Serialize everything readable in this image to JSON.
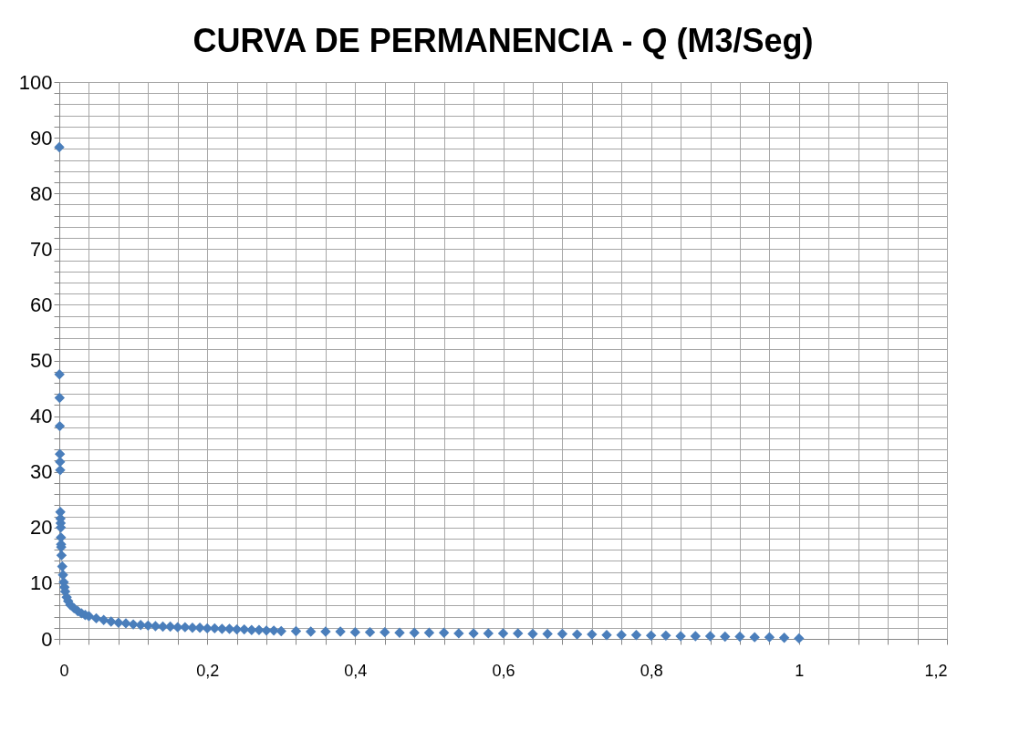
{
  "chart_data": {
    "type": "scatter",
    "title": "CURVA DE PERMANENCIA - Q (M3/Seg)",
    "marker": "diamond",
    "grid": true,
    "xlim": [
      0,
      1.2
    ],
    "ylim": [
      0,
      100
    ],
    "xticks": [
      0,
      {
        "value": 0.04,
        "label": null
      },
      {
        "value": 0.08,
        "label": null
      },
      {
        "value": 0.12,
        "label": null
      },
      {
        "value": 0.16,
        "label": null
      },
      {
        "value": 0.2,
        "label": "0,2"
      },
      {
        "value": 0.24,
        "label": null
      },
      {
        "value": 0.28,
        "label": null
      },
      {
        "value": 0.32,
        "label": null
      },
      {
        "value": 0.36,
        "label": null
      },
      {
        "value": 0.4,
        "label": "0,4"
      },
      {
        "value": 0.44,
        "label": null
      },
      {
        "value": 0.48,
        "label": null
      },
      {
        "value": 0.52,
        "label": null
      },
      {
        "value": 0.56,
        "label": null
      },
      {
        "value": 0.6,
        "label": "0,6"
      },
      {
        "value": 0.64,
        "label": null
      },
      {
        "value": 0.68,
        "label": null
      },
      {
        "value": 0.72,
        "label": null
      },
      {
        "value": 0.76,
        "label": null
      },
      {
        "value": 0.8,
        "label": "0,8"
      },
      {
        "value": 0.84,
        "label": null
      },
      {
        "value": 0.88,
        "label": null
      },
      {
        "value": 0.92,
        "label": null
      },
      {
        "value": 0.96,
        "label": null
      },
      1,
      {
        "value": 1.04,
        "label": null
      },
      {
        "value": 1.08,
        "label": null
      },
      {
        "value": 1.12,
        "label": null
      },
      {
        "value": 1.16,
        "label": null
      },
      {
        "value": 1.2,
        "label": "1,2"
      }
    ],
    "yticks": [
      0,
      {
        "value": 2,
        "label": null
      },
      {
        "value": 4,
        "label": null
      },
      {
        "value": 6,
        "label": null
      },
      {
        "value": 8,
        "label": null
      },
      10,
      {
        "value": 12,
        "label": null
      },
      {
        "value": 14,
        "label": null
      },
      {
        "value": 16,
        "label": null
      },
      {
        "value": 18,
        "label": null
      },
      20,
      {
        "value": 22,
        "label": null
      },
      {
        "value": 24,
        "label": null
      },
      {
        "value": 26,
        "label": null
      },
      {
        "value": 28,
        "label": null
      },
      30,
      {
        "value": 32,
        "label": null
      },
      {
        "value": 34,
        "label": null
      },
      {
        "value": 36,
        "label": null
      },
      {
        "value": 38,
        "label": null
      },
      40,
      {
        "value": 42,
        "label": null
      },
      {
        "value": 44,
        "label": null
      },
      {
        "value": 46,
        "label": null
      },
      {
        "value": 48,
        "label": null
      },
      50,
      {
        "value": 52,
        "label": null
      },
      {
        "value": 54,
        "label": null
      },
      {
        "value": 56,
        "label": null
      },
      {
        "value": 58,
        "label": null
      },
      60,
      {
        "value": 62,
        "label": null
      },
      {
        "value": 64,
        "label": null
      },
      {
        "value": 66,
        "label": null
      },
      {
        "value": 68,
        "label": null
      },
      70,
      {
        "value": 72,
        "label": null
      },
      {
        "value": 74,
        "label": null
      },
      {
        "value": 76,
        "label": null
      },
      {
        "value": 78,
        "label": null
      },
      80,
      {
        "value": 82,
        "label": null
      },
      {
        "value": 84,
        "label": null
      },
      {
        "value": 86,
        "label": null
      },
      {
        "value": 88,
        "label": null
      },
      90,
      {
        "value": 92,
        "label": null
      },
      {
        "value": 94,
        "label": null
      },
      {
        "value": 96,
        "label": null
      },
      {
        "value": 98,
        "label": null
      },
      100
    ],
    "series": [
      {
        "color": "#4a7ebb",
        "x": [
          0,
          0.0002,
          0.0004,
          0.0006,
          0.0008,
          0.001,
          0.0012,
          0.0014,
          0.0016,
          0.0018,
          0.002,
          0.0022,
          0.0024,
          0.0026,
          0.003,
          0.004,
          0.005,
          0.006,
          0.007,
          0.008,
          0.01,
          0.012,
          0.015,
          0.02,
          0.025,
          0.03,
          0.035,
          0.04,
          0.05,
          0.06,
          0.07,
          0.08,
          0.09,
          0.1,
          0.11,
          0.12,
          0.13,
          0.14,
          0.15,
          0.16,
          0.17,
          0.18,
          0.19,
          0.2,
          0.21,
          0.22,
          0.23,
          0.24,
          0.25,
          0.26,
          0.27,
          0.28,
          0.29,
          0.3,
          0.32,
          0.34,
          0.36,
          0.38,
          0.4,
          0.42,
          0.44,
          0.46,
          0.48,
          0.5,
          0.52,
          0.54,
          0.56,
          0.58,
          0.6,
          0.62,
          0.64,
          0.66,
          0.68,
          0.7,
          0.72,
          0.74,
          0.76,
          0.78,
          0.8,
          0.82,
          0.84,
          0.86,
          0.88,
          0.9,
          0.92,
          0.94,
          0.96,
          0.98,
          1.0
        ],
        "values": [
          88.3,
          47.5,
          43.3,
          38.2,
          33.2,
          31.8,
          30.3,
          22.8,
          21.6,
          20.8,
          20,
          18.2,
          17,
          16.5,
          15,
          13,
          11.5,
          10.2,
          9.3,
          8.5,
          7.5,
          6.8,
          6.1,
          5.5,
          5,
          4.6,
          4.3,
          4.1,
          3.7,
          3.4,
          3.1,
          2.9,
          2.8,
          2.6,
          2.5,
          2.4,
          2.3,
          2.2,
          2.2,
          2.1,
          2.1,
          2.0,
          2.0,
          1.9,
          1.9,
          1.8,
          1.8,
          1.7,
          1.7,
          1.6,
          1.6,
          1.5,
          1.5,
          1.4,
          1.4,
          1.3,
          1.3,
          1.3,
          1.2,
          1.2,
          1.2,
          1.1,
          1.1,
          1.1,
          1.1,
          1.0,
          1.0,
          1.0,
          1.0,
          1.0,
          0.9,
          0.9,
          0.9,
          0.8,
          0.8,
          0.7,
          0.7,
          0.7,
          0.6,
          0.6,
          0.5,
          0.5,
          0.5,
          0.4,
          0.4,
          0.3,
          0.3,
          0.2,
          0.1
        ]
      }
    ]
  }
}
